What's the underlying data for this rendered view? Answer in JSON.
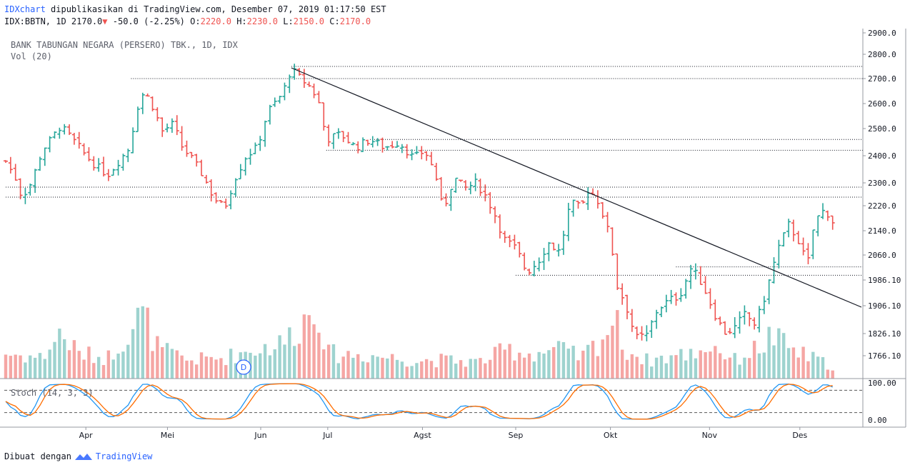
{
  "header": {
    "brand": "IDXchart",
    "published_text": "dipublikasikan di TradingView.com, Desember 07, 2019 01:17:50 EST",
    "symbol_line": "IDX:BBTN, 1D 2170.0",
    "change_arrow": "▼",
    "change": "-50.0 (-2.25%)",
    "o_label": "O:",
    "o_value": "2220.0",
    "h_label": "H:",
    "h_value": "2230.0",
    "l_label": "L:",
    "l_value": "2150.0",
    "c_label": "C:",
    "c_value": "2170.0"
  },
  "legend": {
    "title": "BANK TABUNGAN NEGARA (PERSERO) TBK., 1D, IDX",
    "volume": "Vol (20)",
    "stoch": "Stoch (14, 3, 3)"
  },
  "footer": {
    "made_with": "Dibuat dengan",
    "brand": "TradingView"
  },
  "colors": {
    "up": "#26a69a",
    "down": "#ef5350",
    "up_vol": "#9ed3cf",
    "down_vol": "#f5a6a4",
    "k_line": "#2196f3",
    "d_line": "#ff6d00"
  },
  "chart_data": {
    "type": "ohlc",
    "y_ticks": [
      "2900.0",
      "2800.0",
      "2700.0",
      "2600.0",
      "2500.0",
      "2400.0",
      "2300.0",
      "2220.0",
      "2140.0",
      "2060.0",
      "1986.10",
      "1906.10",
      "1826.10",
      "1766.10"
    ],
    "x_labels": [
      "Apr",
      "Mei",
      "Jun",
      "Jul",
      "Agst",
      "Sep",
      "Okt",
      "Nov",
      "Des"
    ],
    "stoch_ticks": [
      "100.00",
      "0.00"
    ],
    "ylim": [
      1710,
      2915
    ],
    "horizontal_levels": [
      2750,
      2700,
      2460,
      2420,
      2285,
      2250,
      2025,
      2000
    ],
    "trendline": {
      "from": [
        0.392,
        2750
      ],
      "to": [
        1,
        1900
      ]
    },
    "volume_marker": "D",
    "price_keyframes": [
      [
        0,
        2380
      ],
      [
        0.013,
        2320
      ],
      [
        0.022,
        2250
      ],
      [
        0.035,
        2300
      ],
      [
        0.05,
        2420
      ],
      [
        0.065,
        2470
      ],
      [
        0.075,
        2510
      ],
      [
        0.085,
        2480
      ],
      [
        0.098,
        2440
      ],
      [
        0.11,
        2400
      ],
      [
        0.125,
        2360
      ],
      [
        0.14,
        2330
      ],
      [
        0.155,
        2380
      ],
      [
        0.17,
        2430
      ],
      [
        0.18,
        2580
      ],
      [
        0.19,
        2650
      ],
      [
        0.2,
        2600
      ],
      [
        0.215,
        2490
      ],
      [
        0.23,
        2520
      ],
      [
        0.24,
        2440
      ],
      [
        0.255,
        2390
      ],
      [
        0.27,
        2330
      ],
      [
        0.285,
        2250
      ],
      [
        0.3,
        2210
      ],
      [
        0.315,
        2320
      ],
      [
        0.33,
        2400
      ],
      [
        0.345,
        2430
      ],
      [
        0.36,
        2570
      ],
      [
        0.38,
        2640
      ],
      [
        0.392,
        2740
      ],
      [
        0.405,
        2700
      ],
      [
        0.42,
        2660
      ],
      [
        0.43,
        2600
      ],
      [
        0.44,
        2460
      ],
      [
        0.46,
        2480
      ],
      [
        0.48,
        2430
      ],
      [
        0.5,
        2460
      ],
      [
        0.52,
        2430
      ],
      [
        0.54,
        2450
      ],
      [
        0.56,
        2390
      ],
      [
        0.575,
        2420
      ],
      [
        0.59,
        2330
      ],
      [
        0.6,
        2200
      ],
      [
        0.615,
        2320
      ],
      [
        0.63,
        2280
      ],
      [
        0.645,
        2300
      ],
      [
        0.655,
        2270
      ],
      [
        0.67,
        2200
      ],
      [
        0.685,
        2110
      ],
      [
        0.7,
        2080
      ],
      [
        0.715,
        2010
      ],
      [
        0.73,
        2040
      ],
      [
        0.745,
        2100
      ],
      [
        0.76,
        2070
      ],
      [
        0.775,
        2230
      ],
      [
        0.79,
        2210
      ],
      [
        0.8,
        2280
      ],
      [
        0.815,
        2230
      ],
      [
        0.83,
        2110
      ],
      [
        0.84,
        1960
      ],
      [
        0.85,
        1920
      ],
      [
        0.865,
        1810
      ],
      [
        0.88,
        1820
      ],
      [
        0.895,
        1900
      ],
      [
        0.91,
        1920
      ],
      [
        0.925,
        1940
      ],
      [
        0.94,
        2020
      ],
      [
        0.955,
        1980
      ],
      [
        0.97,
        1900
      ],
      [
        0.985,
        1830
      ],
      [
        1.0,
        1840
      ],
      [
        1.015,
        1880
      ],
      [
        1.03,
        1850
      ],
      [
        1.045,
        1960
      ],
      [
        1.06,
        2080
      ],
      [
        1.075,
        2160
      ],
      [
        1.09,
        2100
      ],
      [
        1.1,
        2020
      ],
      [
        1.11,
        2170
      ],
      [
        1.125,
        2210
      ],
      [
        1.135,
        2170
      ]
    ],
    "volume_keyframes": [
      [
        0,
        0.3
      ],
      [
        0.05,
        0.25
      ],
      [
        0.075,
        0.55
      ],
      [
        0.1,
        0.3
      ],
      [
        0.14,
        0.25
      ],
      [
        0.18,
        0.7
      ],
      [
        0.19,
        0.75
      ],
      [
        0.21,
        0.35
      ],
      [
        0.25,
        0.22
      ],
      [
        0.3,
        0.25
      ],
      [
        0.34,
        0.35
      ],
      [
        0.38,
        0.42
      ],
      [
        0.43,
        0.9
      ],
      [
        0.44,
        0.3
      ],
      [
        0.5,
        0.28
      ],
      [
        0.56,
        0.22
      ],
      [
        0.6,
        0.22
      ],
      [
        0.65,
        0.2
      ],
      [
        0.69,
        0.35
      ],
      [
        0.72,
        0.3
      ],
      [
        0.76,
        0.35
      ],
      [
        0.79,
        0.25
      ],
      [
        0.82,
        0.5
      ],
      [
        0.835,
        0.72
      ],
      [
        0.85,
        0.35
      ],
      [
        0.88,
        0.22
      ],
      [
        0.94,
        0.3
      ],
      [
        0.97,
        0.4
      ],
      [
        1.0,
        0.22
      ],
      [
        1.04,
        0.4
      ],
      [
        1.05,
        0.52
      ],
      [
        1.06,
        0.45
      ],
      [
        1.09,
        0.3
      ],
      [
        1.135,
        0.15
      ]
    ]
  }
}
